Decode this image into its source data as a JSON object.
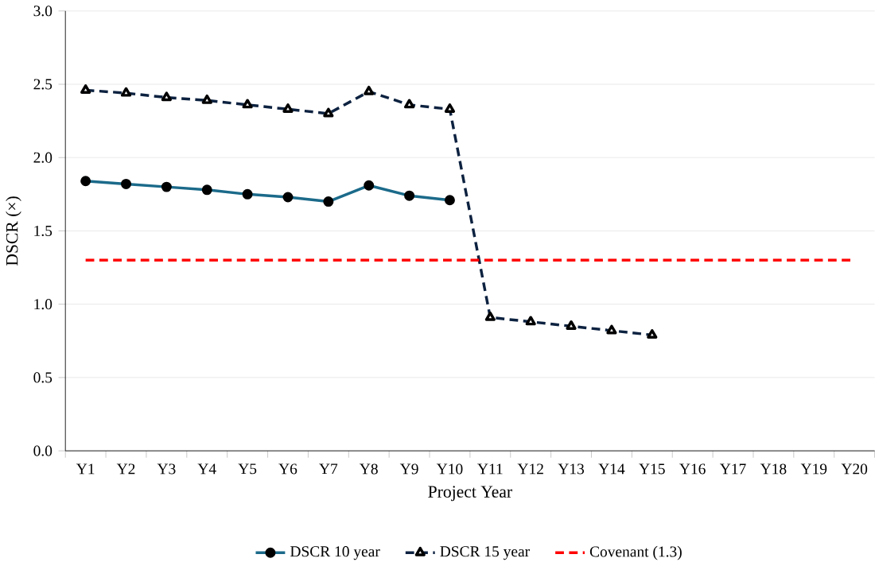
{
  "chart_data": {
    "type": "line",
    "xlabel": "Project Year",
    "ylabel": "DSCR (×)",
    "categories": [
      "Y1",
      "Y2",
      "Y3",
      "Y4",
      "Y5",
      "Y6",
      "Y7",
      "Y8",
      "Y9",
      "Y10",
      "Y11",
      "Y12",
      "Y13",
      "Y14",
      "Y15",
      "Y16",
      "Y17",
      "Y18",
      "Y19",
      "Y20"
    ],
    "series": [
      {
        "name": "DSCR 10 year",
        "color": "#1b6a8a",
        "marker": "circle",
        "line_style": "solid",
        "values": [
          1.84,
          1.82,
          1.8,
          1.78,
          1.75,
          1.73,
          1.7,
          1.81,
          1.74,
          1.71,
          null,
          null,
          null,
          null,
          null,
          null,
          null,
          null,
          null,
          null
        ]
      },
      {
        "name": "DSCR 15 year",
        "color": "#0d2240",
        "marker": "triangle",
        "line_style": "dashed",
        "values": [
          2.46,
          2.44,
          2.41,
          2.39,
          2.36,
          2.33,
          2.3,
          2.45,
          2.36,
          2.33,
          0.91,
          0.88,
          0.85,
          0.82,
          0.79,
          null,
          null,
          null,
          null,
          null
        ]
      }
    ],
    "ref_lines": [
      {
        "axis": "y",
        "value": 1.3,
        "label": "Covenant (1.3)",
        "color": "#ff0000",
        "line_style": "dashed"
      }
    ],
    "ylim": [
      0,
      3
    ],
    "yticks": [
      {
        "value": 0,
        "label": "0.0"
      },
      {
        "value": 0.5,
        "label": "0.5"
      },
      {
        "value": 1,
        "label": "1.0"
      },
      {
        "value": 1.5,
        "label": "1.5"
      },
      {
        "value": 2,
        "label": "2.0"
      },
      {
        "value": 2.5,
        "label": "2.5"
      },
      {
        "value": 3,
        "label": "3.0"
      }
    ],
    "grid": "y",
    "legend": "bottom"
  }
}
